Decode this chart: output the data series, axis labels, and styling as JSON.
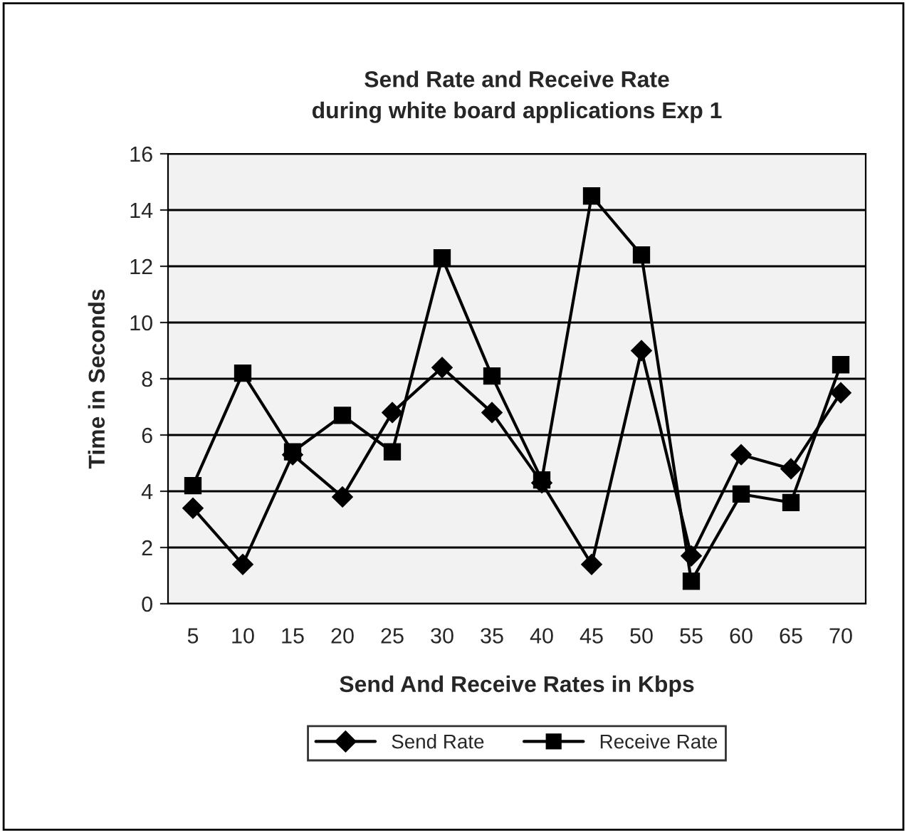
{
  "chart_data": {
    "type": "line",
    "title": "Send Rate and Receive Rate\nduring white board applications Exp 1",
    "xlabel": "Send And Receive Rates in Kbps",
    "ylabel": "Time in Seconds",
    "categories": [
      "5",
      "10",
      "15",
      "20",
      "25",
      "30",
      "35",
      "40",
      "45",
      "50",
      "55",
      "60",
      "65",
      "70"
    ],
    "series": [
      {
        "name": "Send Rate",
        "color": "#000000",
        "marker": "diamond",
        "values": [
          3.4,
          1.4,
          5.3,
          3.8,
          6.8,
          8.4,
          6.8,
          4.3,
          1.4,
          9.0,
          1.7,
          5.3,
          4.8,
          7.5
        ]
      },
      {
        "name": "Receive Rate",
        "color": "#000000",
        "marker": "square",
        "values": [
          4.2,
          8.2,
          5.4,
          6.7,
          5.4,
          12.3,
          8.1,
          4.4,
          14.5,
          12.4,
          0.8,
          3.9,
          3.6,
          8.5
        ]
      }
    ],
    "ylim": [
      0,
      16
    ],
    "yticks": [
      0,
      2,
      4,
      6,
      8,
      10,
      12,
      14,
      16
    ],
    "grid": "y",
    "legend": "bottom",
    "line_style": "solid"
  }
}
